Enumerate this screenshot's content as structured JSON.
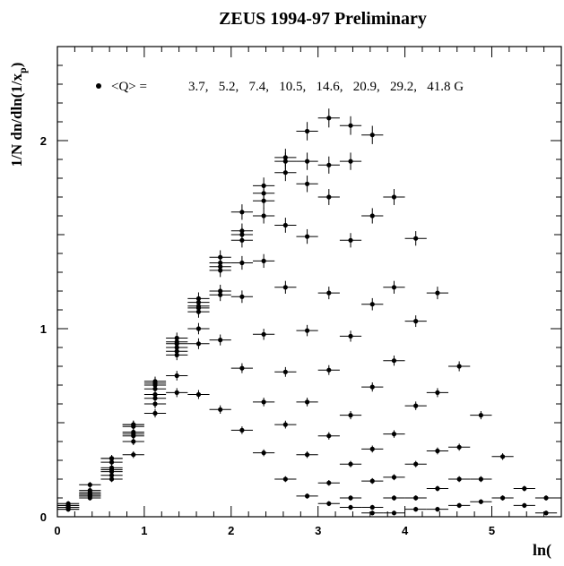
{
  "chart_data": {
    "type": "scatter",
    "title": "ZEUS 1994-97 Preliminary",
    "xlabel": "ln(",
    "ylabel": "1/N dn/dln(1/x",
    "ylabel_sub": "p",
    "ylabel_close": ")",
    "xlim": [
      0,
      5.8
    ],
    "ylim": [
      0,
      2.5
    ],
    "x_ticks": [
      "0",
      "1",
      "2",
      "3",
      "4",
      "5"
    ],
    "y_ticks": [
      "0",
      "1",
      "2"
    ],
    "legend": {
      "label": "<Q> =",
      "values": "3.7,   5.2,   7.4,   10.5,   14.6,   20.9,   29.2,   41.8 G"
    },
    "series": [
      {
        "x": [
          0.125,
          0.375,
          0.625,
          0.875,
          1.125,
          1.375,
          1.625,
          1.875,
          2.125,
          2.375,
          2.625,
          2.875,
          3.125,
          3.375,
          3.625
        ],
        "y": [
          0.04,
          0.11,
          0.2,
          0.33,
          0.55,
          0.66,
          0.65,
          0.57,
          0.46,
          0.34,
          0.2,
          0.11,
          0.07,
          0.05,
          0.02
        ]
      },
      {
        "x": [
          0.125,
          0.375,
          0.625,
          0.875,
          1.125,
          1.375,
          1.625,
          1.875,
          2.125,
          2.375,
          2.625,
          2.875,
          3.125,
          3.375,
          3.625,
          3.875
        ],
        "y": [
          0.04,
          0.1,
          0.22,
          0.4,
          0.6,
          0.75,
          0.92,
          0.94,
          0.79,
          0.61,
          0.49,
          0.33,
          0.18,
          0.1,
          0.05,
          0.02
        ]
      },
      {
        "x": [
          0.125,
          0.375,
          0.625,
          0.875,
          1.125,
          1.375,
          1.625,
          1.875,
          2.125,
          2.375,
          2.625,
          2.875,
          3.125,
          3.375,
          3.625,
          3.875,
          4.125
        ],
        "y": [
          0.05,
          0.11,
          0.24,
          0.43,
          0.63,
          0.86,
          1.0,
          1.18,
          1.17,
          0.97,
          0.77,
          0.61,
          0.43,
          0.28,
          0.19,
          0.1,
          0.04
        ]
      },
      {
        "x": [
          0.125,
          0.375,
          0.625,
          0.875,
          1.125,
          1.375,
          1.625,
          1.875,
          2.125,
          2.375,
          2.625,
          2.875,
          3.125,
          3.375,
          3.625,
          3.875,
          4.125,
          4.375
        ],
        "y": [
          0.05,
          0.12,
          0.25,
          0.44,
          0.65,
          0.88,
          1.09,
          1.2,
          1.35,
          1.36,
          1.22,
          0.99,
          0.78,
          0.54,
          0.36,
          0.21,
          0.1,
          0.04
        ]
      },
      {
        "x": [
          0.125,
          0.375,
          0.625,
          0.875,
          1.125,
          1.375,
          1.625,
          1.875,
          2.125,
          2.375,
          2.625,
          2.875,
          3.125,
          3.375,
          3.625,
          3.875,
          4.125,
          4.375,
          4.625
        ],
        "y": [
          0.05,
          0.12,
          0.26,
          0.45,
          0.68,
          0.9,
          1.11,
          1.31,
          1.47,
          1.6,
          1.55,
          1.49,
          1.19,
          0.96,
          0.69,
          0.44,
          0.28,
          0.15,
          0.06
        ]
      },
      {
        "x": [
          0.125,
          0.375,
          0.625,
          0.875,
          1.125,
          1.375,
          1.625,
          1.875,
          2.125,
          2.375,
          2.625,
          2.875,
          3.125,
          3.375,
          3.625,
          3.875,
          4.125,
          4.375,
          4.625,
          4.875
        ],
        "y": [
          0.06,
          0.13,
          0.29,
          0.48,
          0.7,
          0.92,
          1.12,
          1.33,
          1.5,
          1.68,
          1.83,
          1.77,
          1.7,
          1.47,
          1.13,
          0.83,
          0.59,
          0.35,
          0.2,
          0.08
        ]
      },
      {
        "x": [
          0.125,
          0.375,
          0.625,
          0.875,
          1.125,
          1.375,
          1.625,
          1.875,
          2.125,
          2.375,
          2.625,
          2.875,
          3.125,
          3.375,
          3.625,
          3.875,
          4.125,
          4.375,
          4.625,
          4.875,
          5.125,
          5.375,
          5.625
        ],
        "y": [
          0.06,
          0.14,
          0.31,
          0.49,
          0.71,
          0.93,
          1.14,
          1.35,
          1.52,
          1.72,
          1.89,
          1.89,
          1.87,
          1.89,
          1.6,
          1.22,
          1.04,
          0.66,
          0.37,
          0.2,
          0.1,
          0.06,
          0.02
        ]
      },
      {
        "x": [
          0.125,
          0.375,
          0.625,
          0.875,
          1.125,
          1.375,
          1.625,
          1.875,
          2.125,
          2.375,
          2.625,
          2.875,
          3.125,
          3.375,
          3.625,
          3.875,
          4.125,
          4.375,
          4.625,
          4.875,
          5.125,
          5.375,
          5.625
        ],
        "y": [
          0.07,
          0.17,
          0.31,
          0.49,
          0.72,
          0.95,
          1.16,
          1.38,
          1.62,
          1.76,
          1.91,
          2.05,
          2.12,
          2.08,
          2.03,
          1.7,
          1.48,
          1.19,
          0.8,
          0.54,
          0.32,
          0.15,
          0.1
        ]
      }
    ]
  }
}
